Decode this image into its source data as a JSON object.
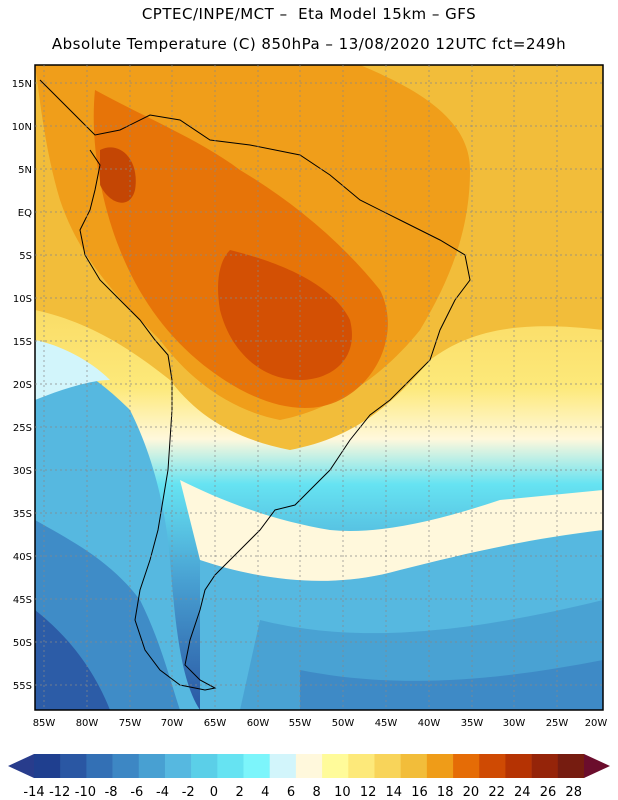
{
  "header": {
    "line1": "CPTEC/INPE/MCT –  Eta Model 15km – GFS",
    "line2": "Absolute Temperature (C) 850hPa – 13/08/2020 12UTC fct=249h"
  },
  "map": {
    "lat_labels": [
      "15N",
      "10N",
      "5N",
      "EQ",
      "5S",
      "10S",
      "15S",
      "20S",
      "25S",
      "30S",
      "35S",
      "40S",
      "45S",
      "50S",
      "55S"
    ],
    "lon_labels": [
      "85W",
      "80W",
      "75W",
      "70W",
      "65W",
      "60W",
      "55W",
      "50W",
      "45W",
      "40W",
      "35W",
      "30W",
      "25W",
      "20W"
    ]
  },
  "colorbar": {
    "colors": [
      "#1f3f8f",
      "#2a57a3",
      "#3370b5",
      "#3d87c4",
      "#48a0d2",
      "#56b8e0",
      "#5bcfe8",
      "#66e3f2",
      "#7cf5fb",
      "#d2f5fb",
      "#fff8dc",
      "#fffb9a",
      "#fde97a",
      "#f8d45a",
      "#f2bd3a",
      "#ef9c18",
      "#e56c06",
      "#cf4a03",
      "#b53303",
      "#952409",
      "#761c10"
    ],
    "left_arrow_color": "#283c8c",
    "right_arrow_color": "#6b0d2c",
    "labels": [
      "-14",
      "-12",
      "-10",
      "-8",
      "-6",
      "-4",
      "-2",
      "0",
      "2",
      "4",
      "6",
      "8",
      "10",
      "12",
      "14",
      "16",
      "18",
      "20",
      "22",
      "24",
      "26",
      "28"
    ]
  }
}
